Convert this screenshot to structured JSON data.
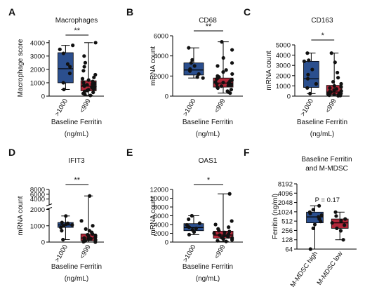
{
  "colors": {
    "high": "#2b4f8e",
    "low": "#b2283a",
    "dot": "#111111",
    "axis": "#000000"
  },
  "chart_data": [
    {
      "panel": "A",
      "title": "Macrophages",
      "type": "box",
      "ylabel": "Macrophage score",
      "xlabel": "Baseline Ferritin\n(ng/mL)",
      "categories": [
        ">1000",
        "<999"
      ],
      "yticks": [
        0,
        1000,
        2000,
        3000,
        4000
      ],
      "ylim": [
        0,
        4200
      ],
      "significance": "**",
      "series": [
        {
          "group": ">1000",
          "color_key": "high",
          "box": {
            "min": 500,
            "q1": 1000,
            "median": 2050,
            "q3": 3250,
            "max": 3800
          },
          "points": [
            500,
            1000,
            1700,
            2200,
            2400,
            3200,
            3500,
            3800
          ]
        },
        {
          "group": "<999",
          "color_key": "low",
          "box": {
            "min": 50,
            "q1": 400,
            "median": 750,
            "q3": 1150,
            "max": 4000
          },
          "points": [
            50,
            120,
            200,
            280,
            350,
            420,
            480,
            520,
            600,
            650,
            700,
            750,
            800,
            850,
            900,
            950,
            1000,
            1100,
            1200,
            1300,
            1400,
            1600,
            1900,
            2200,
            2500,
            3000,
            4000
          ]
        }
      ]
    },
    {
      "panel": "B",
      "title": "CD68",
      "type": "box",
      "ylabel": "mRNA count",
      "xlabel": "Baseline Ferritin\n(ng/mL)",
      "categories": [
        ">1000",
        "<999"
      ],
      "yticks": [
        0,
        2000,
        4000,
        6000
      ],
      "ylim": [
        0,
        6000
      ],
      "significance": "**",
      "series": [
        {
          "group": ">1000",
          "color_key": "high",
          "box": {
            "min": 1800,
            "q1": 2100,
            "median": 2600,
            "q3": 3300,
            "max": 4800
          },
          "points": [
            1800,
            1900,
            2200,
            2500,
            2700,
            3000,
            3300,
            3600,
            4800
          ]
        },
        {
          "group": "<999",
          "color_key": "low",
          "box": {
            "min": 300,
            "q1": 900,
            "median": 1300,
            "q3": 1800,
            "max": 5400
          },
          "points": [
            300,
            400,
            500,
            650,
            800,
            900,
            1000,
            1050,
            1100,
            1200,
            1300,
            1350,
            1400,
            1500,
            1600,
            1700,
            1800,
            1900,
            2000,
            2200,
            2400,
            2600,
            3000,
            3300,
            3800,
            4600,
            5400
          ]
        }
      ]
    },
    {
      "panel": "C",
      "title": "CD163",
      "type": "box",
      "ylabel": "mRNA count",
      "xlabel": "Baseline Ferritin\n(ng/mL)",
      "categories": [
        ">1000",
        "<999"
      ],
      "yticks": [
        0,
        1000,
        2000,
        3000,
        4000,
        5000
      ],
      "ylim": [
        0,
        5000
      ],
      "significance": "*",
      "series": [
        {
          "group": ">1000",
          "color_key": "high",
          "box": {
            "min": 250,
            "q1": 850,
            "median": 1700,
            "q3": 3400,
            "max": 4200
          },
          "points": [
            250,
            800,
            1200,
            1700,
            2100,
            2600,
            3400,
            3500,
            4200
          ]
        },
        {
          "group": "<999",
          "color_key": "low",
          "box": {
            "min": 30,
            "q1": 150,
            "median": 400,
            "q3": 1050,
            "max": 4200
          },
          "points": [
            30,
            60,
            90,
            120,
            150,
            180,
            220,
            260,
            300,
            350,
            400,
            450,
            500,
            600,
            700,
            800,
            900,
            1000,
            1200,
            1400,
            1800,
            2300,
            3300,
            4200
          ]
        }
      ]
    },
    {
      "panel": "D",
      "title": "IFIT3",
      "type": "box",
      "ylabel": "mRNA count",
      "xlabel": "Baseline Ferritin\n(ng/mL)",
      "categories": [
        ">1000",
        "<999"
      ],
      "yticks": [
        0,
        1000,
        2000,
        4000,
        6000,
        8000
      ],
      "ylim": [
        0,
        8000
      ],
      "axis_break": true,
      "significance": "**",
      "series": [
        {
          "group": ">1000",
          "color_key": "high",
          "box": {
            "min": 150,
            "q1": 900,
            "median": 1050,
            "q3": 1200,
            "max": 1600
          },
          "points": [
            150,
            700,
            900,
            1000,
            1050,
            1100,
            1150,
            1200,
            1600
          ]
        },
        {
          "group": "<999",
          "color_key": "low",
          "box": {
            "min": 0,
            "q1": 80,
            "median": 250,
            "q3": 500,
            "max": 5300
          },
          "points": [
            0,
            20,
            50,
            80,
            100,
            130,
            160,
            200,
            250,
            300,
            350,
            400,
            450,
            500,
            600,
            700,
            800,
            1000,
            1300,
            5300
          ]
        }
      ]
    },
    {
      "panel": "E",
      "title": "OAS1",
      "type": "box",
      "ylabel": "mRNA count",
      "xlabel": "Baseline Ferritin\n(ng/mL)",
      "categories": [
        ">1000",
        "<999"
      ],
      "yticks": [
        0,
        2000,
        4000,
        6000,
        8000,
        10000,
        12000
      ],
      "ylim": [
        0,
        12000
      ],
      "significance": "*",
      "series": [
        {
          "group": ">1000",
          "color_key": "high",
          "box": {
            "min": 1700,
            "q1": 2600,
            "median": 3300,
            "q3": 4200,
            "max": 6000
          },
          "points": [
            1700,
            2300,
            2800,
            3100,
            3400,
            3900,
            4300,
            5200,
            6000
          ]
        },
        {
          "group": "<999",
          "color_key": "low",
          "box": {
            "min": 150,
            "q1": 900,
            "median": 1600,
            "q3": 2500,
            "max": 11000
          },
          "points": [
            150,
            300,
            500,
            700,
            900,
            1000,
            1200,
            1400,
            1500,
            1600,
            1800,
            2000,
            2200,
            2400,
            2600,
            3000,
            3400,
            4000,
            4800,
            11000
          ]
        }
      ]
    },
    {
      "panel": "F",
      "title": "Baseline Ferritin\nand M-MDSC",
      "type": "box",
      "ylabel": "Ferritin (ng/ml)",
      "xlabel": "",
      "scale": "log2",
      "categories": [
        "M-MDSC high",
        "M-MDSC low"
      ],
      "yticks": [
        64,
        128,
        256,
        512,
        1024,
        2048,
        4096,
        8192
      ],
      "ylim": [
        64,
        8192
      ],
      "significance": "P = 0.17",
      "series": [
        {
          "group": "M-MDSC high",
          "color_key": "high",
          "box": {
            "min": 64,
            "q1": 450,
            "median": 700,
            "q3": 1000,
            "max": 1600
          },
          "points": [
            64,
            300,
            400,
            500,
            600,
            700,
            800,
            900,
            1000,
            1200,
            1600
          ]
        },
        {
          "group": "M-MDSC low",
          "color_key": "low",
          "box": {
            "min": 128,
            "q1": 300,
            "median": 450,
            "q3": 600,
            "max": 1000
          },
          "points": [
            128,
            250,
            300,
            380,
            450,
            520,
            600,
            750,
            1000
          ]
        }
      ]
    }
  ]
}
